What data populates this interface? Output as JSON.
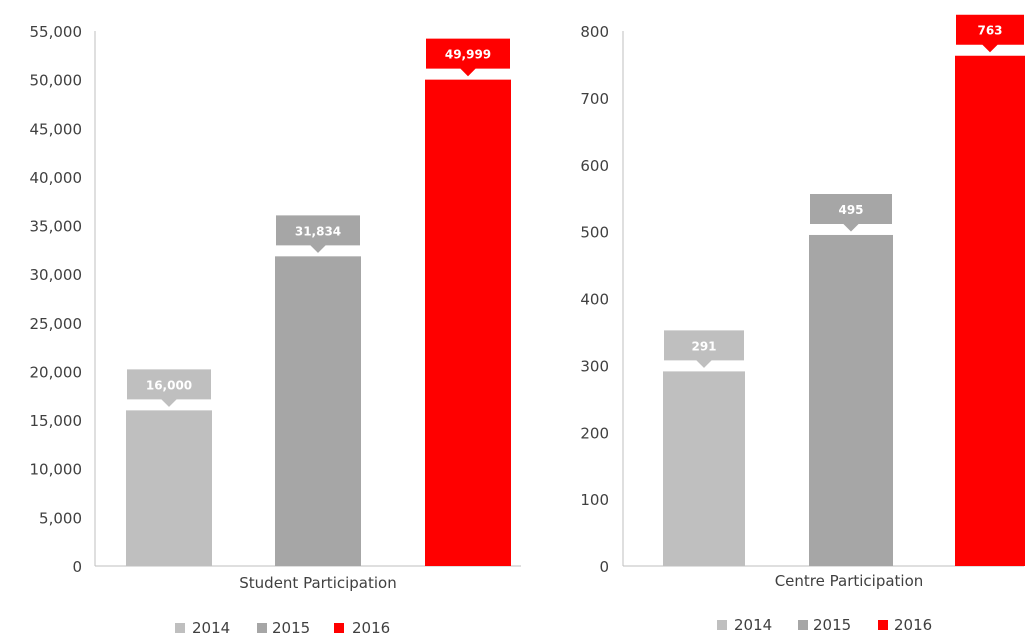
{
  "chart_data": [
    {
      "type": "bar",
      "categories": [
        "Student Participation"
      ],
      "series": [
        {
          "name": "2014",
          "values": [
            16000
          ],
          "label": "16,000"
        },
        {
          "name": "2015",
          "values": [
            31834
          ],
          "label": "31,834"
        },
        {
          "name": "2016",
          "values": [
            49999
          ],
          "label": "49,999"
        }
      ],
      "ylim": [
        0,
        55000
      ],
      "yticks": [
        "0",
        "5,000",
        "10,000",
        "15,000",
        "20,000",
        "25,000",
        "30,000",
        "35,000",
        "40,000",
        "45,000",
        "50,000",
        "55,000"
      ],
      "ytick_values": [
        0,
        5000,
        10000,
        15000,
        20000,
        25000,
        30000,
        35000,
        40000,
        45000,
        50000,
        55000
      ],
      "legend": "bottom",
      "grid": false
    },
    {
      "type": "bar",
      "categories": [
        "Centre Participation"
      ],
      "series": [
        {
          "name": "2014",
          "values": [
            291
          ],
          "label": "291"
        },
        {
          "name": "2015",
          "values": [
            495
          ],
          "label": "495"
        },
        {
          "name": "2016",
          "values": [
            763
          ],
          "label": "763"
        }
      ],
      "ylim": [
        0,
        800
      ],
      "yticks": [
        "0",
        "100",
        "200",
        "300",
        "400",
        "500",
        "600",
        "700",
        "800"
      ],
      "ytick_values": [
        0,
        100,
        200,
        300,
        400,
        500,
        600,
        700,
        800
      ],
      "legend": "bottom",
      "grid": false
    }
  ],
  "colors": {
    "2014": "#bfbfbf",
    "2015": "#a6a6a6",
    "2016": "#ff0000",
    "axis": "#bfbfbf",
    "text": "#404040"
  }
}
